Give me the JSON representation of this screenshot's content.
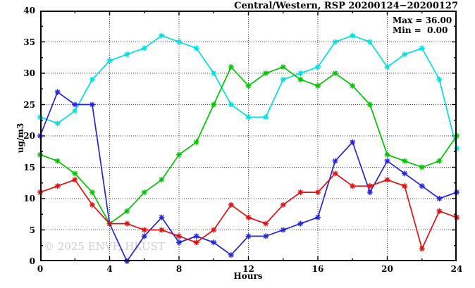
{
  "title": "Central/Western, RSP 20200124−20200127",
  "annotation": {
    "max_label": "Max = 36.00",
    "min_label": "Min =  0.00"
  },
  "watermark": "© 2025 ENVF, HKUST",
  "chart_data": {
    "type": "line",
    "title": "Central/Western, RSP 20200124−20200127",
    "xlabel": "Hours",
    "ylabel": "ug/m3",
    "xlim": [
      0,
      24
    ],
    "ylim": [
      0,
      40
    ],
    "grid": "dotted major gridlines, full frame with inward ticks",
    "legend_position": "none",
    "x_tick_labels": [
      "0",
      "4",
      "8",
      "12",
      "16",
      "20",
      "24"
    ],
    "y_tick_labels": [
      "0",
      "5",
      "10",
      "15",
      "20",
      "25",
      "30",
      "35",
      "40"
    ],
    "x_major_step": 4,
    "x_minor_step": 2,
    "y_major_step": 5,
    "y_minor_step": 2.5,
    "x": [
      0,
      1,
      2,
      3,
      4,
      5,
      6,
      7,
      8,
      9,
      10,
      11,
      12,
      13,
      14,
      15,
      16,
      17,
      18,
      19,
      20,
      21,
      22,
      23,
      24
    ],
    "series": [
      {
        "name": "cyan-series",
        "color": "#00dfdf",
        "marker": "star",
        "values": [
          23,
          22,
          24,
          29,
          32,
          33,
          34,
          36,
          35,
          34,
          30,
          25,
          23,
          23,
          29,
          30,
          31,
          35,
          36,
          35,
          31,
          33,
          34,
          29,
          18
        ]
      },
      {
        "name": "green-series",
        "color": "#00c400",
        "marker": "star",
        "values": [
          17,
          16,
          14,
          11,
          6,
          8,
          11,
          13,
          17,
          19,
          25,
          31,
          28,
          30,
          31,
          29,
          28,
          30,
          28,
          25,
          17,
          16,
          15,
          16,
          20
        ]
      },
      {
        "name": "blue-series",
        "color": "#2424d8",
        "marker": "star",
        "values": [
          20,
          27,
          25,
          25,
          6,
          0,
          4,
          7,
          3,
          4,
          3,
          1,
          4,
          4,
          5,
          6,
          7,
          16,
          19,
          11,
          16,
          14,
          12,
          10,
          11
        ]
      },
      {
        "name": "red-series",
        "color": "#df1010",
        "marker": "star",
        "values": [
          11,
          12,
          13,
          9,
          6,
          6,
          5,
          5,
          4,
          3,
          5,
          9,
          7,
          6,
          9,
          11,
          11,
          14,
          12,
          12,
          13,
          12,
          2,
          8,
          7
        ]
      }
    ],
    "stats": {
      "max": 36.0,
      "min": 0.0
    }
  }
}
